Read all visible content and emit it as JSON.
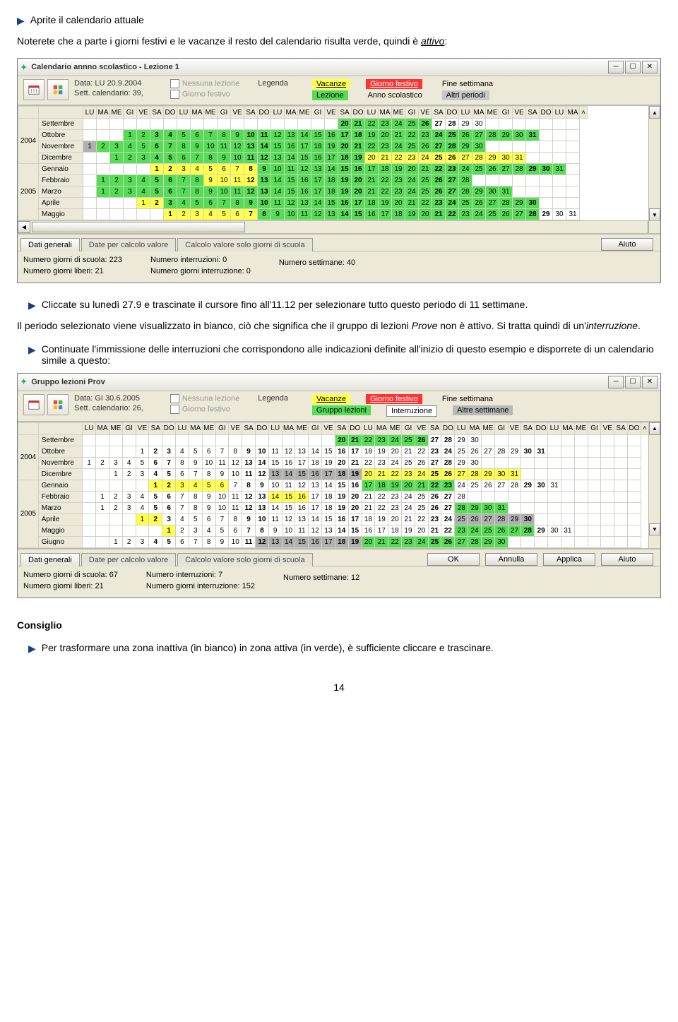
{
  "intro": {
    "bullet1": "Aprite il calendario attuale",
    "paragraph1_a": "Noterete che a parte i giorni festivi e le vacanze il resto del calendario risulta verde, quindi è ",
    "paragraph1_b": "attivo",
    "paragraph1_c": ":"
  },
  "win1": {
    "title": "Calendario annno scolastico - Lezione 1",
    "data_label": "Data:",
    "data_value": "LU 20.9.2004",
    "sett_label": "Sett. calendario:",
    "sett_value": "39,",
    "chk_nessuna": "Nessuna lezione",
    "chk_festivo": "Giorno festivo",
    "legenda": "Legenda",
    "lez": "Lezione",
    "vacanze": "Vacanze",
    "anno": "Anno scolastico",
    "giorno_festivo": "Giorno festivo",
    "altri": "Altri periodi",
    "fine": "Fine settimana",
    "dow": [
      "LU",
      "MA",
      "ME",
      "GI",
      "VE",
      "SA",
      "DO",
      "LU",
      "MA",
      "ME",
      "GI",
      "VE",
      "SA",
      "DO",
      "LU",
      "MA",
      "ME",
      "GI",
      "VE",
      "SA",
      "DO",
      "LU",
      "MA",
      "ME",
      "GI",
      "VE",
      "SA",
      "DO",
      "LU",
      "MA",
      "ME",
      "GI",
      "VE",
      "SA",
      "DO",
      "LU",
      "MA"
    ],
    "year2004": "2004",
    "year2005": "2005",
    "months": [
      "Settembre",
      "Ottobre",
      "Novembre",
      "Dicembre",
      "Gennaio",
      "Febbraio",
      "Marzo",
      "Aprile",
      "Maggio"
    ],
    "tab1": "Dati generali",
    "tab2": "Date per calcolo valore",
    "tab3": "Calcolo valore solo giorni di scuola",
    "btn_aiuto": "Aiuto",
    "foot_scuola": "Numero giorni di scuola: 223",
    "foot_liberi": "Numero giorni liberi: 21",
    "foot_interruzioni": "Numero interruzioni: 0",
    "foot_giorni_int": "Numero giorni interruzione: 0",
    "foot_settimane": "Numero settimane: 40",
    "colors": {
      "green": "#55dd55",
      "yellow": "#ffff4d",
      "gray": "#b0b0b0",
      "red": "#ff3333",
      "bg": "#ece9d8"
    }
  },
  "mid": {
    "bullet2": "Cliccate su lunedì 27.9 e trascinate il cursore fino all'11.12 per selezionare tutto questo periodo di 11 settimane.",
    "paragraph2_a": "Il periodo selezionato viene visualizzato in bianco, ciò che significa che il gruppo di lezioni ",
    "paragraph2_b": "Prove",
    "paragraph2_c": " non è attivo. Si tratta quindi di un'",
    "paragraph2_d": "interruzione",
    "paragraph2_e": ".",
    "bullet3": "Continuate l'immissione delle interruzioni che corrispondono alle indicazioni definite all'inizio di questo esempio e disporrete di un calendario simile a questo:"
  },
  "win2": {
    "title": "Gruppo lezioni Prov",
    "data_label": "Data:",
    "data_value": "GI 30.6.2005",
    "sett_label": "Sett. calendario:",
    "sett_value": "26,",
    "chk_nessuna": "Nessuna lezione",
    "chk_festivo": "Giorno festivo",
    "legenda": "Legenda",
    "grp": "Gruppo lezioni",
    "vacanze": "Vacanze",
    "intz": "Interruzione",
    "giorno_festivo": "Giorno festivo",
    "altresett": "Altre settimane",
    "fine": "Fine settimana",
    "dow": [
      "LU",
      "MA",
      "ME",
      "GI",
      "VE",
      "SA",
      "DO",
      "LU",
      "MA",
      "ME",
      "GI",
      "VE",
      "SA",
      "DO",
      "LU",
      "MA",
      "ME",
      "GI",
      "VE",
      "SA",
      "DO",
      "LU",
      "MA",
      "ME",
      "GI",
      "VE",
      "SA",
      "DO",
      "LU",
      "MA",
      "ME",
      "GI",
      "VE",
      "SA",
      "DO",
      "LU",
      "MA",
      "ME",
      "GI",
      "VE",
      "SA",
      "DO"
    ],
    "year2004": "2004",
    "year2005": "2005",
    "months": [
      "Settembre",
      "Ottobre",
      "Novembre",
      "Dicembre",
      "Gennaio",
      "Febbraio",
      "Marzo",
      "Aprile",
      "Maggio",
      "Giugno"
    ],
    "tab1": "Dati generali",
    "tab2": "Date per calcolo valore",
    "tab3": "Calcolo valore solo giorni di scuola",
    "btn_ok": "OK",
    "btn_annulla": "Annulla",
    "btn_applica": "Applica",
    "btn_aiuto": "Aiuto",
    "foot_scuola": "Numero giorni di scuola: 67",
    "foot_liberi": "Numero giorni liberi: 21",
    "foot_interruzioni": "Numero interruzioni: 7",
    "foot_giorni_int": "Numero giorni interruzione: 152",
    "foot_settimane": "Numero settimane: 12"
  },
  "consiglio": {
    "heading": "Consiglio",
    "bullet": "Per trasformare una zona inattiva (in bianco) in zona attiva (in verde), è sufficiente cliccare e trascinare."
  },
  "page_number": "14"
}
